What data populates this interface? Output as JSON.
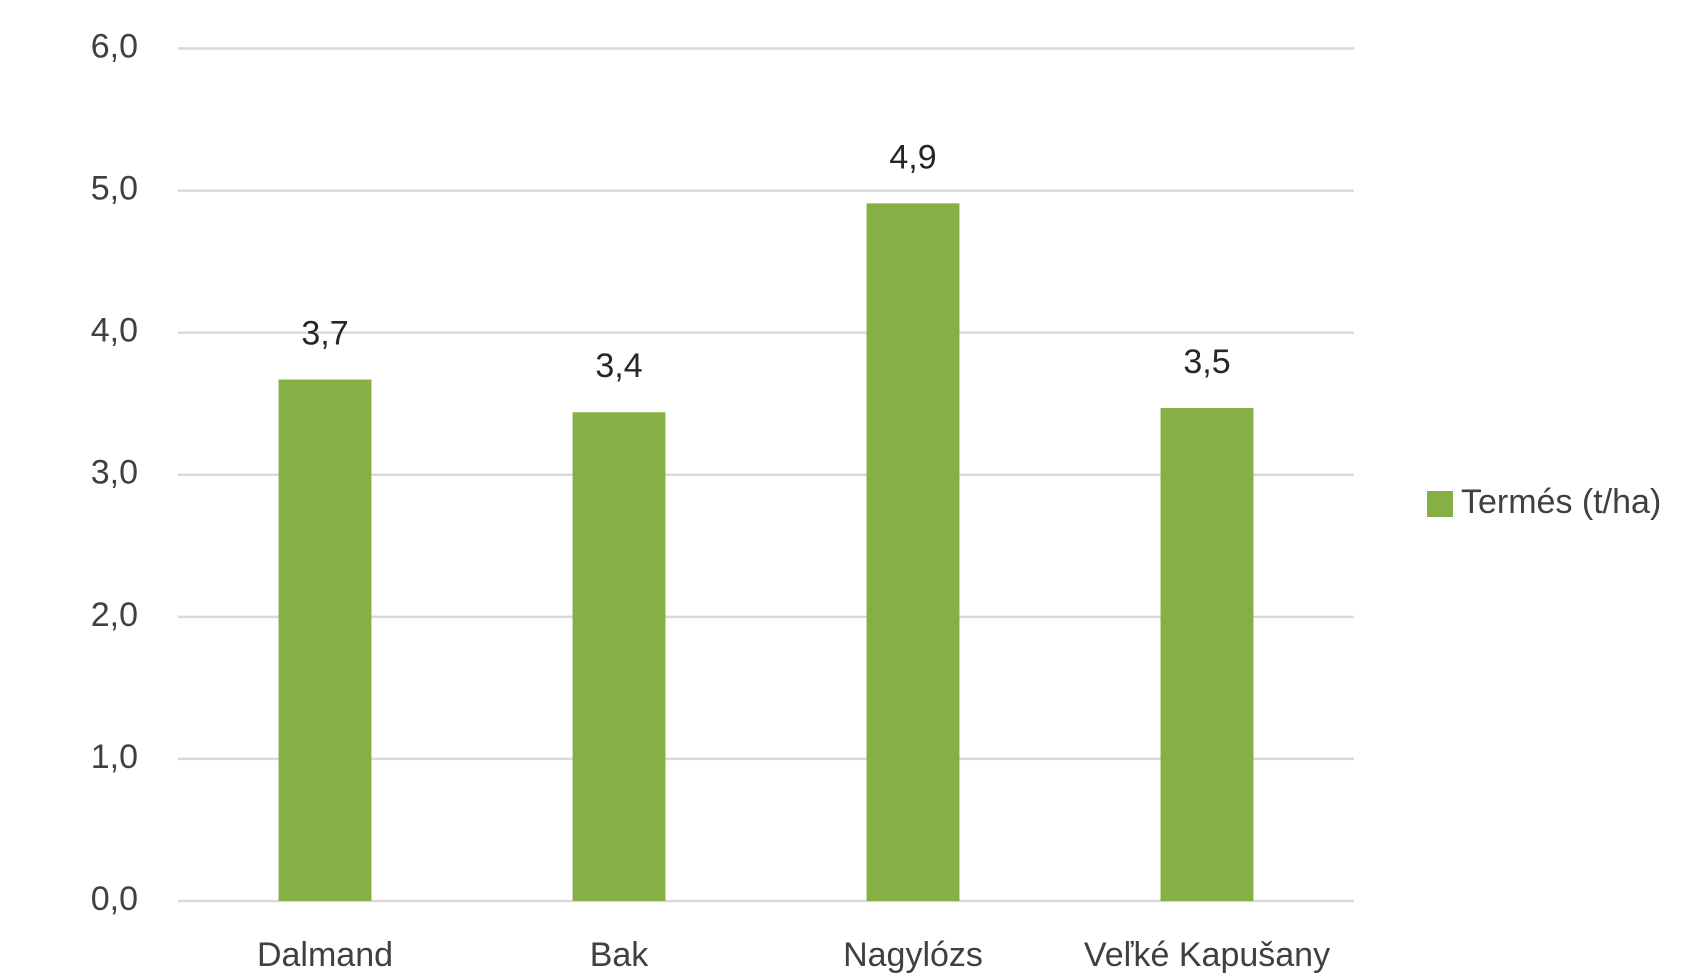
{
  "chart_data": {
    "type": "bar",
    "categories": [
      "Dalmand",
      "Bak",
      "Nagylózs",
      "Veľké Kapušany"
    ],
    "series": [
      {
        "name": "Termés (t/ha)",
        "color": "#86b045",
        "values": [
          3.67,
          3.44,
          4.91,
          3.47
        ],
        "value_labels": [
          "3,7",
          "3,4",
          "4,9",
          "3,5"
        ]
      }
    ],
    "ylim": [
      0,
      6
    ],
    "yticks": [
      {
        "value": 0,
        "label": "0,0"
      },
      {
        "value": 1,
        "label": "1,0"
      },
      {
        "value": 2,
        "label": "2,0"
      },
      {
        "value": 3,
        "label": "3,0"
      },
      {
        "value": 4,
        "label": "4,0"
      },
      {
        "value": 5,
        "label": "5,0"
      },
      {
        "value": 6,
        "label": "6,0"
      }
    ],
    "grid": true,
    "legend": "right"
  }
}
